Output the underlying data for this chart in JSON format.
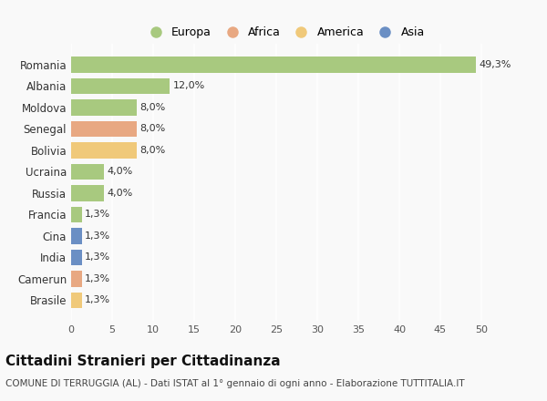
{
  "countries": [
    "Romania",
    "Albania",
    "Moldova",
    "Senegal",
    "Bolivia",
    "Ucraina",
    "Russia",
    "Francia",
    "Cina",
    "India",
    "Camerun",
    "Brasile"
  ],
  "values": [
    49.3,
    12.0,
    8.0,
    8.0,
    8.0,
    4.0,
    4.0,
    1.3,
    1.3,
    1.3,
    1.3,
    1.3
  ],
  "labels": [
    "49,3%",
    "12,0%",
    "8,0%",
    "8,0%",
    "8,0%",
    "4,0%",
    "4,0%",
    "1,3%",
    "1,3%",
    "1,3%",
    "1,3%",
    "1,3%"
  ],
  "continents": [
    "Europa",
    "Europa",
    "Europa",
    "Africa",
    "America",
    "Europa",
    "Europa",
    "Europa",
    "Asia",
    "Asia",
    "Africa",
    "America"
  ],
  "colors": {
    "Europa": "#a8c97f",
    "Africa": "#e8a882",
    "America": "#f0c97a",
    "Asia": "#6b8fc4"
  },
  "xlim": [
    0,
    52
  ],
  "xticks": [
    0,
    5,
    10,
    15,
    20,
    25,
    30,
    35,
    40,
    45,
    50
  ],
  "title": "Cittadini Stranieri per Cittadinanza",
  "subtitle": "COMUNE DI TERRUGGIA (AL) - Dati ISTAT al 1° gennaio di ogni anno - Elaborazione TUTTITALIA.IT",
  "background_color": "#f9f9f9",
  "bar_height": 0.75,
  "grid_color": "#ffffff",
  "label_fontsize": 8,
  "ylabel_fontsize": 8.5,
  "title_fontsize": 11,
  "subtitle_fontsize": 7.5
}
